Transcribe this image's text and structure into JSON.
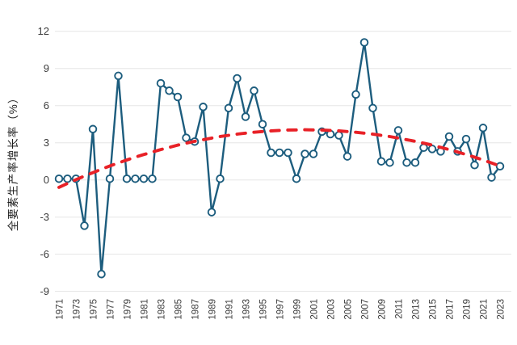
{
  "chart_data": {
    "type": "line",
    "title": "",
    "ylabel": "全要素生产率增长率（%）",
    "xlabel": "",
    "ylim": [
      -9,
      12
    ],
    "yticks": [
      12,
      9,
      6,
      3,
      0,
      -3,
      -6,
      -9
    ],
    "xtick_labels": [
      "1971",
      "1973",
      "1975",
      "1977",
      "1979",
      "1981",
      "1983",
      "1985",
      "1987",
      "1989",
      "1991",
      "1993",
      "1995",
      "1997",
      "1999",
      "2001",
      "2003",
      "2005",
      "2007",
      "2009",
      "2011",
      "2013",
      "2015",
      "2017",
      "2019",
      "2021",
      "2023"
    ],
    "grid": "horizontal",
    "legend_position": "none",
    "x": [
      1971,
      1972,
      1973,
      1974,
      1975,
      1976,
      1977,
      1978,
      1979,
      1980,
      1981,
      1982,
      1983,
      1984,
      1985,
      1986,
      1987,
      1988,
      1989,
      1990,
      1991,
      1992,
      1993,
      1994,
      1995,
      1996,
      1997,
      1998,
      1999,
      2000,
      2001,
      2002,
      2003,
      2004,
      2005,
      2006,
      2007,
      2008,
      2009,
      2010,
      2011,
      2012,
      2013,
      2014,
      2015,
      2016,
      2017,
      2018,
      2019,
      2020,
      2021,
      2022,
      2023
    ],
    "series": [
      {
        "key": "tfp_growth",
        "style": "solid-line-open-circle-markers",
        "color": "#1d5d7e",
        "values": [
          0.1,
          0.1,
          0.1,
          -3.7,
          4.1,
          -7.6,
          0.1,
          8.4,
          0.1,
          0.1,
          0.1,
          0.1,
          7.8,
          7.2,
          6.7,
          3.4,
          3.1,
          5.9,
          -2.6,
          0.1,
          5.8,
          8.2,
          5.1,
          7.2,
          4.5,
          2.2,
          2.2,
          2.2,
          0.1,
          2.1,
          2.1,
          3.9,
          3.7,
          3.6,
          1.9,
          6.9,
          11.1,
          5.8,
          1.5,
          1.4,
          4.0,
          1.4,
          1.4,
          2.6,
          2.5,
          2.3,
          3.5,
          2.3,
          3.3,
          1.2,
          4.2,
          0.2,
          1.1
        ]
      },
      {
        "key": "trend",
        "style": "dashed-line",
        "color": "#e82127",
        "values": [
          -0.6,
          -0.29,
          0.02,
          0.31,
          0.59,
          0.87,
          1.13,
          1.37,
          1.61,
          1.84,
          2.05,
          2.26,
          2.45,
          2.63,
          2.81,
          2.97,
          3.12,
          3.25,
          3.38,
          3.5,
          3.6,
          3.7,
          3.78,
          3.85,
          3.91,
          3.96,
          4.0,
          4.03,
          4.04,
          4.05,
          4.04,
          4.03,
          4.0,
          3.96,
          3.91,
          3.85,
          3.78,
          3.7,
          3.6,
          3.5,
          3.38,
          3.25,
          3.12,
          2.97,
          2.81,
          2.63,
          2.45,
          2.26,
          2.05,
          1.84,
          1.61,
          1.37,
          1.12
        ]
      }
    ],
    "colors": {
      "grid": "#e5e5e5",
      "tick_text": "#3c3c3c",
      "axis_title_text": "#1f1f1f",
      "background": "#ffffff",
      "marker_fill": "#ffffff"
    }
  }
}
